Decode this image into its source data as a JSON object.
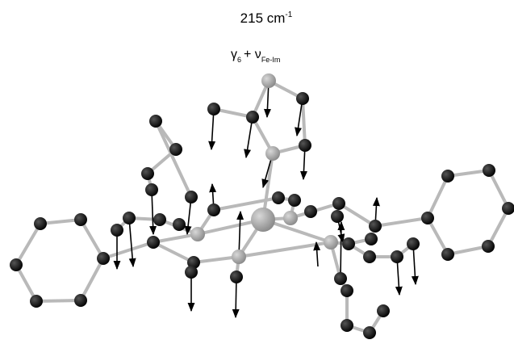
{
  "header": {
    "frequency": {
      "value": "215 cm",
      "exponent": "-1"
    },
    "mode": {
      "symbol": "γ",
      "subscript": "6",
      "plus": "+ ν",
      "bond": "Fe-Im"
    }
  }
}
